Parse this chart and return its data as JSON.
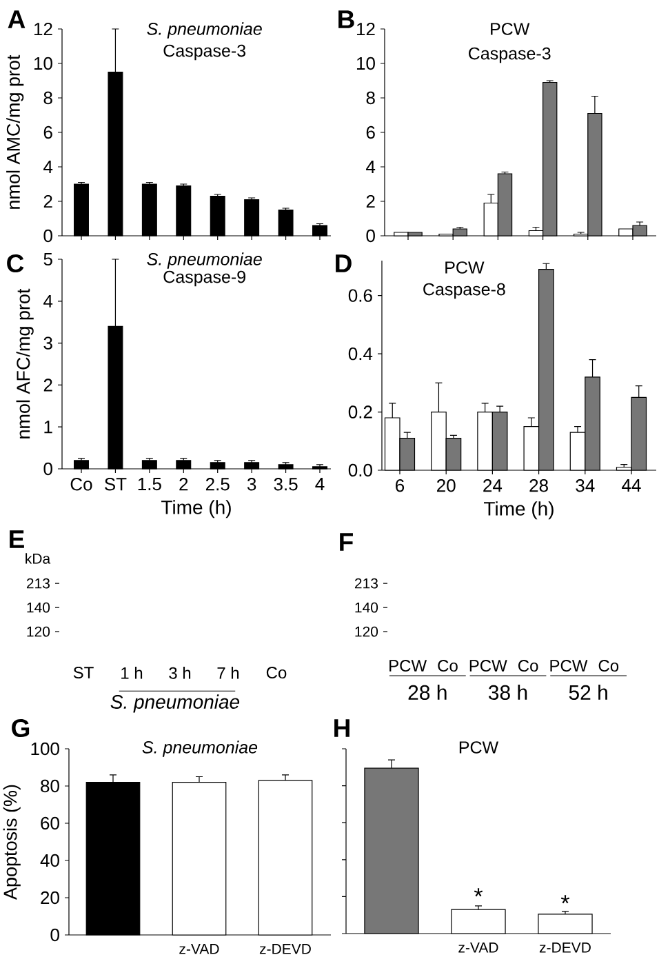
{
  "chart_data": [
    {
      "type": "bar",
      "annotations": [
        "A"
      ],
      "title": "*S. pneumoniae*",
      "subtitle": "Caspase-3",
      "ylabel": "nmol AMC/mg prot",
      "categories": [
        null,
        null,
        null,
        null,
        null,
        null,
        null,
        null
      ],
      "values": [
        3.0,
        9.5,
        3.0,
        2.9,
        2.3,
        2.1,
        1.5,
        0.6
      ],
      "errors": [
        [
          3.0,
          3.1
        ],
        [
          9.5,
          12
        ],
        [
          3.0,
          3.1
        ],
        [
          2.9,
          3.0
        ],
        [
          2.3,
          2.4
        ],
        [
          2.1,
          2.2
        ],
        [
          1.5,
          1.6
        ],
        [
          0.6,
          0.7
        ]
      ],
      "color": "#000000",
      "ylim": [
        0,
        12
      ],
      "yticks": [
        0,
        2,
        4,
        6,
        8,
        10,
        12
      ]
    },
    {
      "type": "bar",
      "annotations": [
        "B"
      ],
      "title": "PCW",
      "subtitle": "Caspase-3",
      "categories": [
        null,
        null,
        null,
        null,
        null,
        null
      ],
      "series": [
        {
          "color": "#ffffff",
          "values": [
            0.2,
            0.1,
            1.9,
            0.3,
            0.1,
            0.4
          ],
          "errors": [
            null,
            null,
            [
              1.9,
              2.4
            ],
            [
              0.3,
              0.5
            ],
            [
              0.1,
              0.2
            ],
            null
          ]
        },
        {
          "color": "#777777",
          "values": [
            0.2,
            0.4,
            3.6,
            8.9,
            7.1,
            0.6
          ],
          "errors": [
            null,
            [
              0.4,
              0.5
            ],
            [
              3.6,
              3.7
            ],
            [
              8.9,
              9.0
            ],
            [
              7.1,
              8.1
            ],
            [
              0.6,
              0.8
            ]
          ]
        }
      ],
      "ylim": [
        0,
        12
      ],
      "yticks": [
        0,
        2,
        4,
        6,
        8,
        10,
        12
      ]
    },
    {
      "type": "bar",
      "annotations": [
        "C"
      ],
      "title": "*S. pneumoniae*",
      "subtitle": "Caspase-9",
      "ylabel": "nmol AFC/mg prot",
      "xlabel": "Time (h)",
      "categories": [
        "Co",
        "ST",
        "1.5",
        "2",
        "2.5",
        "3",
        "3.5",
        "4"
      ],
      "values": [
        0.2,
        3.4,
        0.2,
        0.2,
        0.15,
        0.15,
        0.1,
        0.05
      ],
      "errors": [
        [
          0.2,
          0.25
        ],
        [
          3.4,
          5.0
        ],
        [
          0.2,
          0.25
        ],
        [
          0.2,
          0.25
        ],
        [
          0.15,
          0.2
        ],
        [
          0.15,
          0.2
        ],
        [
          0.1,
          0.15
        ],
        [
          0.05,
          0.1
        ]
      ],
      "color": "#000000",
      "ylim": [
        0,
        5
      ],
      "yticks": [
        0,
        1,
        2,
        3,
        4,
        5
      ]
    },
    {
      "type": "bar",
      "annotations": [
        "D"
      ],
      "title": "PCW",
      "subtitle": "Caspase-8",
      "xlabel": "Time (h)",
      "categories": [
        "6",
        "20",
        "24",
        "28",
        "34",
        "44"
      ],
      "series": [
        {
          "color": "#ffffff",
          "values": [
            0.18,
            0.2,
            0.2,
            0.15,
            0.13,
            0.01
          ],
          "errors": [
            [
              0.18,
              0.23
            ],
            [
              0.2,
              0.3
            ],
            [
              0.2,
              0.23
            ],
            [
              0.15,
              0.18
            ],
            [
              0.13,
              0.15
            ],
            [
              0.01,
              0.02
            ]
          ]
        },
        {
          "color": "#777777",
          "values": [
            0.11,
            0.11,
            0.2,
            0.69,
            0.32,
            0.25
          ],
          "errors": [
            [
              0.11,
              0.13
            ],
            [
              0.11,
              0.12
            ],
            [
              0.2,
              0.22
            ],
            [
              0.69,
              0.71
            ],
            [
              0.32,
              0.38
            ],
            [
              0.25,
              0.29
            ]
          ]
        }
      ],
      "ylim": [
        0,
        0.72
      ],
      "yticks": [
        {
          "value": 0,
          "label": "0.0"
        },
        0.2,
        0.4,
        0.6
      ]
    },
    {
      "type": "other",
      "annotations": [
        "E"
      ],
      "ylabel": "kDa",
      "xlabel": "*S. pneumoniae*",
      "categories": [
        "ST",
        "1 h",
        "3 h",
        "7 h",
        "Co"
      ],
      "y_categories": [
        "213",
        "140",
        "120"
      ]
    },
    {
      "type": "other",
      "annotations": [
        "F",
        "28 h",
        "38 h",
        "52 h"
      ],
      "categories": [
        "PCW",
        "Co",
        "PCW",
        "Co",
        "PCW",
        "Co"
      ],
      "y_categories": [
        "213",
        "140",
        "120"
      ]
    },
    {
      "type": "bar",
      "annotations": [
        "G"
      ],
      "title": "*S. pneumoniae*",
      "ylabel": "Apoptosis (%)",
      "categories": [
        null,
        "z-VAD",
        "z-DEVD"
      ],
      "values": [
        82,
        82,
        83
      ],
      "errors": [
        [
          82,
          86
        ],
        [
          82,
          85
        ],
        [
          83,
          86
        ]
      ],
      "colors": [
        "#000000",
        "#ffffff",
        "#ffffff"
      ],
      "ylim": [
        0,
        100
      ],
      "yticks": [
        0,
        20,
        40,
        60,
        80,
        100
      ]
    },
    {
      "type": "bar",
      "annotations": [
        "H",
        "*",
        "*"
      ],
      "title": "PCW",
      "categories": [
        null,
        "z-VAD",
        "z-DEVD"
      ],
      "values": [
        89.5,
        13,
        10.5
      ],
      "errors": [
        [
          89.5,
          94
        ],
        [
          13,
          15
        ],
        [
          10.5,
          12
        ]
      ],
      "colors": [
        "#777777",
        "#ffffff",
        "#ffffff"
      ],
      "ylim": [
        0,
        100
      ],
      "yticks": [
        0,
        20,
        40,
        60,
        80,
        100
      ],
      "tick_labels": "x"
    }
  ]
}
